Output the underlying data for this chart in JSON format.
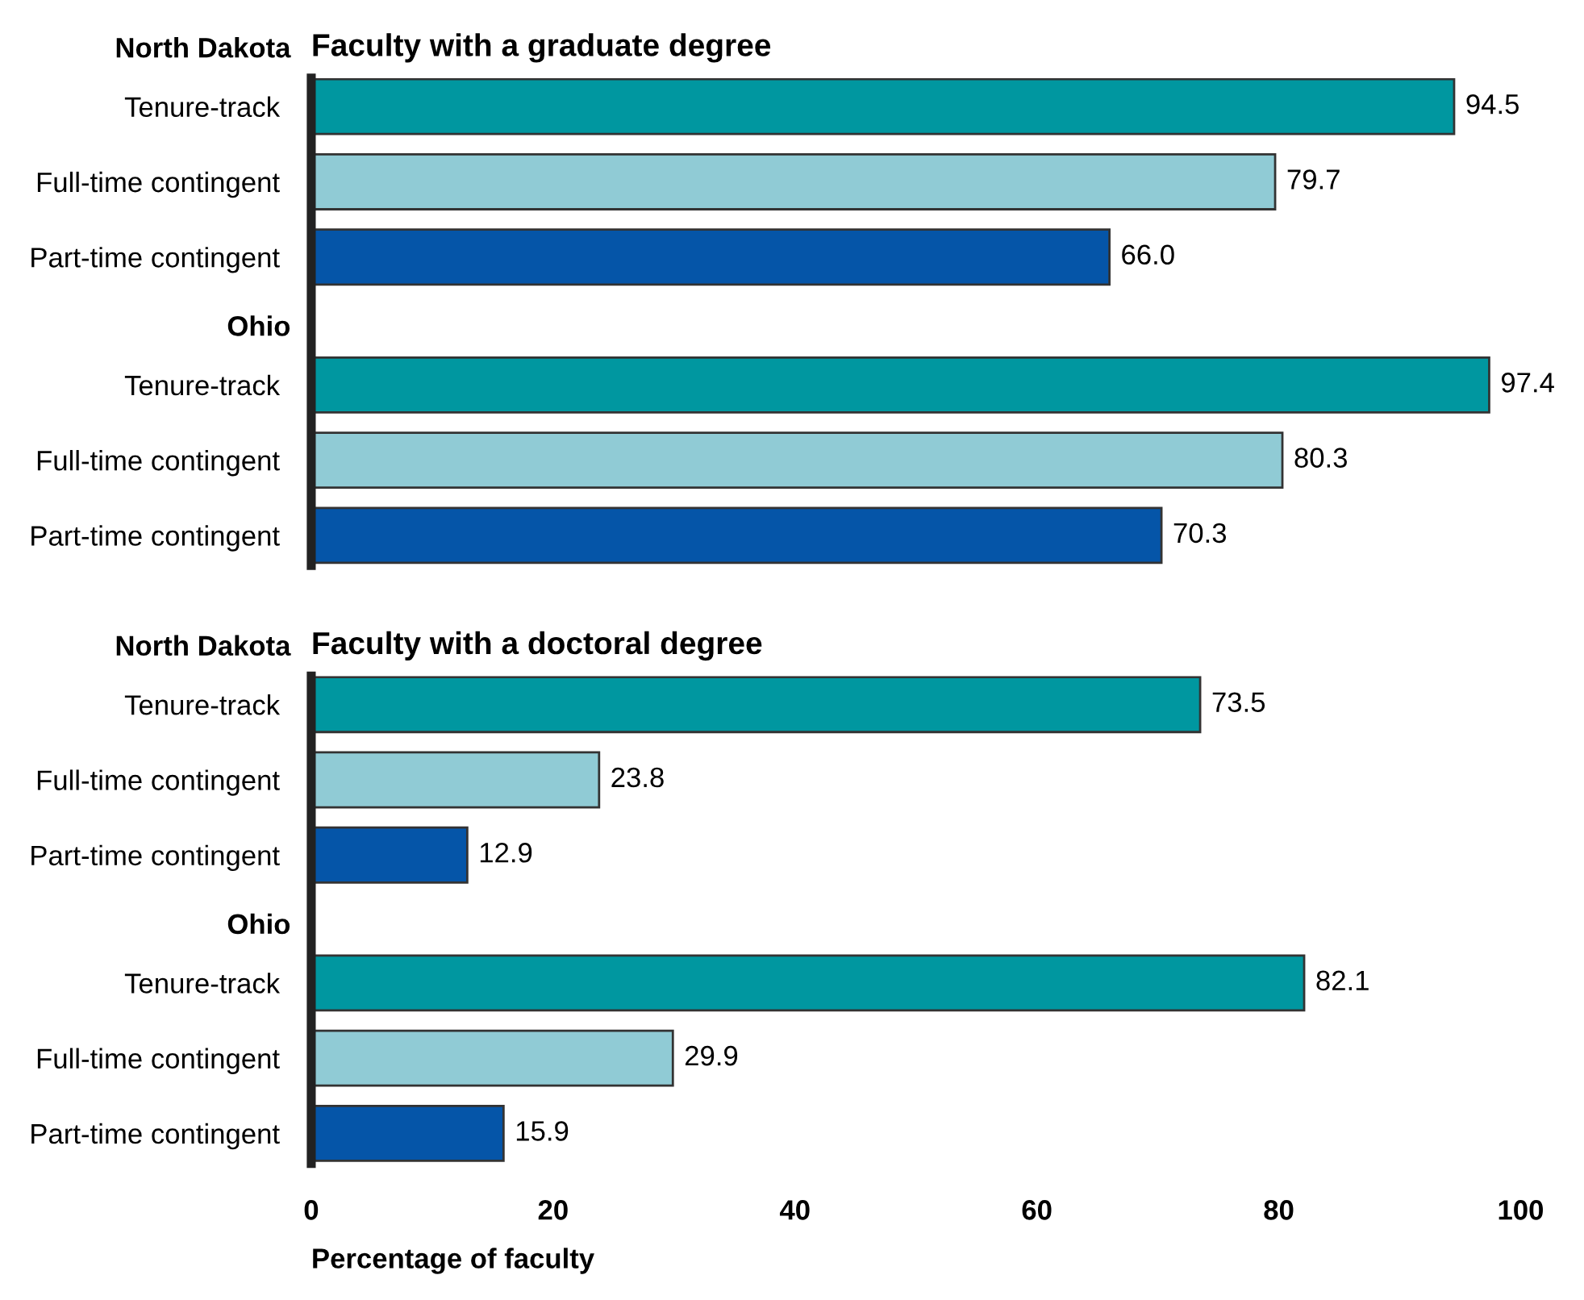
{
  "chart_data": [
    {
      "type": "bar",
      "orientation": "horizontal",
      "title": "Faculty with a graduate degree",
      "categories": [
        "Tenure-track",
        "Full-time contingent",
        "Part-time contingent",
        "Tenure-track",
        "Full-time contingent",
        "Part-time contingent"
      ],
      "values": [
        94.5,
        79.7,
        66.0,
        97.4,
        80.3,
        70.3
      ],
      "colors": [
        "#0097a0",
        "#90cbd5",
        "#0555a8",
        "#0097a0",
        "#90cbd5",
        "#0555a8"
      ],
      "xlim": [
        0,
        100
      ],
      "tick_labels": "y",
      "value_labels": [
        "94.5",
        "79.7",
        "66.0",
        "97.4",
        "80.3",
        "70.3"
      ],
      "annotations": [
        "North Dakota",
        "Ohio"
      ]
    },
    {
      "type": "bar",
      "orientation": "horizontal",
      "title": "Faculty with a doctoral degree",
      "xlabel": "Percentage of faculty",
      "categories": [
        "Tenure-track",
        "Full-time contingent",
        "Part-time contingent",
        "Tenure-track",
        "Full-time contingent",
        "Part-time contingent"
      ],
      "values": [
        73.5,
        23.8,
        12.9,
        82.1,
        29.9,
        15.9
      ],
      "colors": [
        "#0097a0",
        "#90cbd5",
        "#0555a8",
        "#0097a0",
        "#90cbd5",
        "#0555a8"
      ],
      "xlim": [
        0,
        100
      ],
      "xticks": [
        0,
        20,
        40,
        60,
        80,
        100
      ],
      "value_labels": [
        "73.5",
        "23.8",
        "12.9",
        "82.1",
        "29.9",
        "15.9"
      ],
      "annotations": [
        "North Dakota",
        "Ohio"
      ]
    }
  ]
}
